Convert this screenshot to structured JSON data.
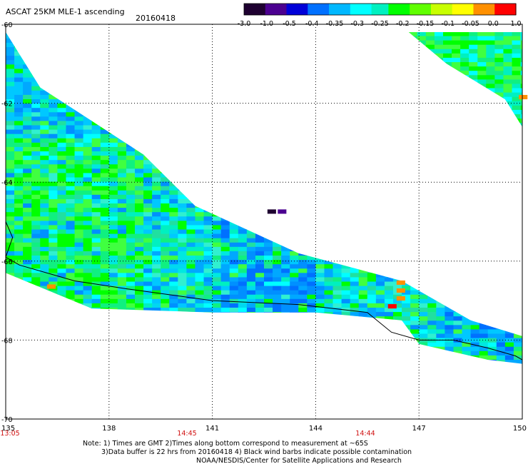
{
  "header": {
    "title": "ASCAT 25KM MLE-1 ascending",
    "date": "20160418"
  },
  "colorbar": {
    "labels": [
      "-3.0",
      "-1.0",
      "-0.5",
      "-0.4",
      "-0.35",
      "-0.3",
      "-0.25",
      "-0.2",
      "-0.15",
      "-0.1",
      "-0.05",
      "0.0",
      "1.0"
    ],
    "colors": [
      "#1e0030",
      "#4b0090",
      "#0000d8",
      "#0070ff",
      "#00b8ff",
      "#00ffff",
      "#00f0c0",
      "#00ff00",
      "#60ff00",
      "#c8ff00",
      "#ffff00",
      "#ff9000",
      "#ff0000"
    ]
  },
  "chart_data": {
    "type": "heatmap",
    "x_ticks": [
      "135",
      "138",
      "141",
      "144",
      "147",
      "150"
    ],
    "y_ticks": [
      "-60",
      "-62",
      "-64",
      "-66",
      "-68",
      "-70"
    ],
    "xlim": [
      135,
      150
    ],
    "ylim": [
      -70,
      -60
    ],
    "grid": true,
    "swath_times": [
      "13:05",
      "14:45",
      "14:44"
    ],
    "swaths": [
      {
        "name": "main swath",
        "polygon": [
          [
            135,
            -60.2
          ],
          [
            135,
            -66.3
          ],
          [
            137.5,
            -67.2
          ],
          [
            141,
            -67.3
          ],
          [
            144,
            -67.3
          ],
          [
            146.5,
            -67.5
          ],
          [
            147,
            -68.1
          ],
          [
            149,
            -68.5
          ],
          [
            150,
            -68.6
          ],
          [
            150,
            -67.9
          ],
          [
            148.5,
            -67.5
          ],
          [
            146.5,
            -66.5
          ],
          [
            143.5,
            -65.8
          ],
          [
            140.5,
            -64.6
          ],
          [
            139,
            -63.3
          ],
          [
            136,
            -61.6
          ]
        ],
        "mean_value_band": "-0.3 to -0.2"
      },
      {
        "name": "upper right swath",
        "polygon": [
          [
            146.7,
            -60.2
          ],
          [
            150,
            -60.2
          ],
          [
            150,
            -62.6
          ],
          [
            149.5,
            -61.9
          ],
          [
            147.8,
            -61.0
          ]
        ],
        "mean_value_band": "-0.25 to -0.15"
      }
    ],
    "coastline": [
      [
        135,
        -65.0
      ],
      [
        135.2,
        -65.4
      ],
      [
        135,
        -65.9
      ],
      [
        135.4,
        -66.1
      ],
      [
        137,
        -66.5
      ],
      [
        138.5,
        -66.7
      ],
      [
        141,
        -67.0
      ],
      [
        143.5,
        -67.1
      ],
      [
        144.5,
        -67.2
      ],
      [
        145.5,
        -67.3
      ],
      [
        146.2,
        -67.8
      ],
      [
        147,
        -68.0
      ],
      [
        148,
        -68.0
      ],
      [
        149,
        -68.2
      ],
      [
        149.8,
        -68.4
      ],
      [
        150,
        -68.5
      ]
    ]
  },
  "notes": {
    "line1": "Note: 1) Times are GMT 2)Times along bottom correspond to measurement at ~65S",
    "line2": "3)Data buffer is 22 hrs from 20160418 4) Black wind barbs indicate possible contamination",
    "line3": "NOAA/NESDIS/Center for Satellite Applications and Research"
  }
}
